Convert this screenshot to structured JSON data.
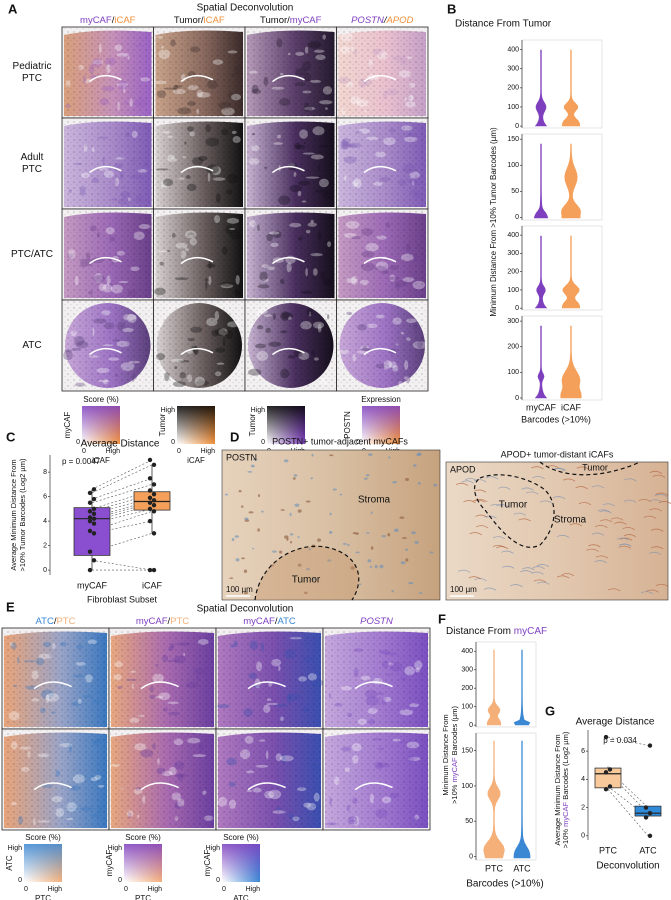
{
  "panelA": {
    "label": "A",
    "title": "Spatial Deconvolution",
    "headers": [
      [
        {
          "text": "myCAF",
          "color": "#7e3fbf"
        },
        {
          "text": "/"
        },
        {
          "text": "iCAF",
          "color": "#f0903c"
        }
      ],
      [
        {
          "text": "Tumor/"
        },
        {
          "text": "iCAF",
          "color": "#f0903c"
        }
      ],
      [
        {
          "text": "Tumor/"
        },
        {
          "text": "myCAF",
          "color": "#7e3fbf"
        }
      ],
      [
        {
          "text": "POSTN",
          "color": "#7e3fbf",
          "italic": true
        },
        {
          "text": "/",
          "italic": true
        },
        {
          "text": "APOD",
          "color": "#f0903c",
          "italic": true
        }
      ]
    ],
    "rows": [
      [
        "Pediatric",
        "PTC"
      ],
      [
        "Adult",
        "PTC"
      ],
      [
        "PTC/ATC"
      ],
      [
        "ATC"
      ]
    ],
    "legends": [
      {
        "title": "Score (%)",
        "ylabel": "myCAF",
        "ylabel_color": "#7e3fbf",
        "ylow": "0",
        "xlow": "0",
        "xhigh": "High",
        "xlabel": "iCAF",
        "xlabel_color": "#f0903c"
      },
      {
        "ylabel": "Tumor",
        "yhigh": "High",
        "ylow": "0",
        "xlow": "0",
        "xhigh": "High",
        "xlabel": "iCAF",
        "xlabel_color": "#f0903c"
      },
      {
        "ylabel": "Tumor",
        "yhigh": "High",
        "ylow": "0",
        "xlow": "0",
        "xhigh": "High",
        "xlabel": "myCAF",
        "xlabel_color": "#7e3fbf"
      },
      {
        "title": "Expression",
        "ylabel": "POSTN",
        "ylabel_color": "#7e3fbf",
        "ylow": "0",
        "xlow": "0",
        "xhigh": "High",
        "xlabel": "APOD",
        "xlabel_color": "#f0903c"
      }
    ]
  },
  "panelB": {
    "label": "B",
    "title": "Distance From Tumor",
    "ylabel": "Minimum Distance From >10% Tumor Barcodes (µm)",
    "categories": [
      "myCAF",
      "iCAF"
    ],
    "colors": [
      "#7e3fbf",
      "#f5a05a"
    ],
    "xlabel": "Barcodes (>10%)",
    "subplots": [
      {
        "ylim": [
          -10,
          450
        ],
        "yticks": [
          0,
          100,
          200,
          300,
          400
        ]
      },
      {
        "ylim": [
          -5,
          160
        ],
        "yticks": [
          0,
          50,
          100,
          150
        ]
      },
      {
        "ylim": [
          -10,
          450
        ],
        "yticks": [
          0,
          100,
          200,
          300,
          400
        ]
      },
      {
        "ylim": [
          -8,
          320
        ],
        "yticks": [
          0,
          100,
          200,
          300
        ]
      }
    ]
  },
  "panelC": {
    "label": "C",
    "title": "Average Distance",
    "pvalue": "p = 0.0047",
    "ylabel": [
      "Average Minimum Distance From",
      ">10% Tumor Barcodes (Log2 µm)"
    ],
    "categories": [
      "myCAF",
      "iCAF"
    ],
    "colors": [
      "#8a4fd0",
      "#f5a05a"
    ],
    "xlabel": "Fibroblast Subset",
    "ylim": [
      -0.4,
      9.4
    ],
    "yticks": [
      0,
      2,
      4,
      6,
      8
    ],
    "boxes": [
      {
        "lo": 0,
        "q1": 1.2,
        "median": 4.2,
        "q3": 5.1,
        "hi": 6.6
      },
      {
        "lo": 3.0,
        "q1": 4.9,
        "median": 5.6,
        "q3": 6.4,
        "hi": 8.6
      }
    ],
    "points": [
      [
        0,
        0.8,
        1.5,
        3.0,
        3.2,
        3.8,
        4.0,
        4.2,
        4.3,
        4.6,
        4.8,
        5.0,
        5.5,
        5.8,
        6.3,
        6.6
      ],
      [
        0,
        0,
        3.0,
        4.0,
        4.8,
        5.0,
        5.3,
        5.5,
        5.7,
        5.9,
        6.2,
        6.5,
        7.0,
        7.5,
        8.6,
        9.0
      ]
    ]
  },
  "panelD": {
    "label": "D",
    "left": {
      "title": "POSTN+ tumor-adjacent myCAFs",
      "stain": "POSTN",
      "stroma": "Stroma",
      "tumor": "Tumor",
      "scale": "100 µm"
    },
    "right": {
      "title": "APOD+ tumor-distant iCAFs",
      "stain": "APOD",
      "tumor_top": "Tumor",
      "tumor": "Tumor",
      "stroma": "Stroma",
      "scale": "100 µm"
    }
  },
  "panelE": {
    "label": "E",
    "title": "Spatial Deconvolution",
    "headers": [
      [
        {
          "text": "ATC",
          "color": "#3a87d4"
        },
        {
          "text": "/"
        },
        {
          "text": "PTC",
          "color": "#f5b07a"
        }
      ],
      [
        {
          "text": "myCAF",
          "color": "#7e3fbf"
        },
        {
          "text": "/"
        },
        {
          "text": "PTC",
          "color": "#f5b07a"
        }
      ],
      [
        {
          "text": "myCAF",
          "color": "#7e3fbf"
        },
        {
          "text": "/"
        },
        {
          "text": "ATC",
          "color": "#3a87d4"
        }
      ],
      [
        {
          "text": "POSTN",
          "color": "#7e3fbf",
          "italic": true
        }
      ]
    ],
    "legends": [
      {
        "title": "Score (%)",
        "ylabel": "ATC",
        "ylabel_color": "#3a87d4",
        "yhigh": "High",
        "ylow": "0",
        "xlow": "0",
        "xhigh": "High",
        "xlabel": "PTC",
        "xlabel_color": "#f5b07a"
      },
      {
        "title": "Score (%)",
        "ylabel": "myCAF",
        "ylabel_color": "#7e3fbf",
        "yhigh": "High",
        "ylow": "0",
        "xlow": "0",
        "xhigh": "High",
        "xlabel": "PTC",
        "xlabel_color": "#f5b07a"
      },
      {
        "title": "Score (%)",
        "ylabel": "myCAF",
        "ylabel_color": "#7e3fbf",
        "yhigh": "High",
        "ylow": "0",
        "xlow": "0",
        "xhigh": "High",
        "xlabel": "ATC",
        "xlabel_color": "#3a87d4"
      }
    ]
  },
  "panelF": {
    "label": "F",
    "title": [
      {
        "text": "Distance From "
      },
      {
        "text": "myCAF",
        "color": "#7e3fbf"
      }
    ],
    "ylabel": [
      [
        {
          "text": "Minimum Distance From"
        }
      ],
      [
        {
          "text": ">10% "
        },
        {
          "text": "myCAF",
          "color": "#7e3fbf"
        },
        {
          "text": " Barcodes (µm)"
        }
      ]
    ],
    "categories": [
      "PTC",
      "ATC"
    ],
    "colors": [
      "#f5b07a",
      "#3a87d4"
    ],
    "xlabel": "Barcodes (>10%)",
    "subplots": [
      {
        "ylim": [
          -10,
          450
        ],
        "yticks": [
          0,
          100,
          200,
          300,
          400
        ]
      },
      {
        "ylim": [
          -5,
          175
        ],
        "yticks": [
          0,
          50,
          100,
          150
        ]
      }
    ]
  },
  "panelG": {
    "label": "G",
    "title": "Average Distance",
    "pvalue": "p = 0.034",
    "ylabel": [
      [
        {
          "text": "Average Minimum Distance From"
        }
      ],
      [
        {
          "text": ">10% "
        },
        {
          "text": "myCAF",
          "color": "#7e3fbf"
        },
        {
          "text": " Barcodes (Log2 µm)"
        }
      ]
    ],
    "categories": [
      "PTC",
      "ATC"
    ],
    "colors": [
      "#f8c99b",
      "#2f8ad8"
    ],
    "xlabel": "Deconvolution",
    "ylim": [
      -0.3,
      7.5
    ],
    "yticks": [
      0,
      2,
      4,
      6
    ],
    "boxes": [
      {
        "lo": 3.3,
        "q1": 3.4,
        "median": 4.4,
        "q3": 4.8,
        "hi": 4.9
      },
      {
        "lo": 1.3,
        "q1": 1.4,
        "median": 1.6,
        "q3": 2.1,
        "hi": 2.1
      }
    ],
    "points": [
      [
        7.0,
        4.7,
        4.5,
        3.5,
        3.3
      ],
      [
        6.4,
        2.0,
        1.6,
        1.3,
        0
      ]
    ]
  }
}
